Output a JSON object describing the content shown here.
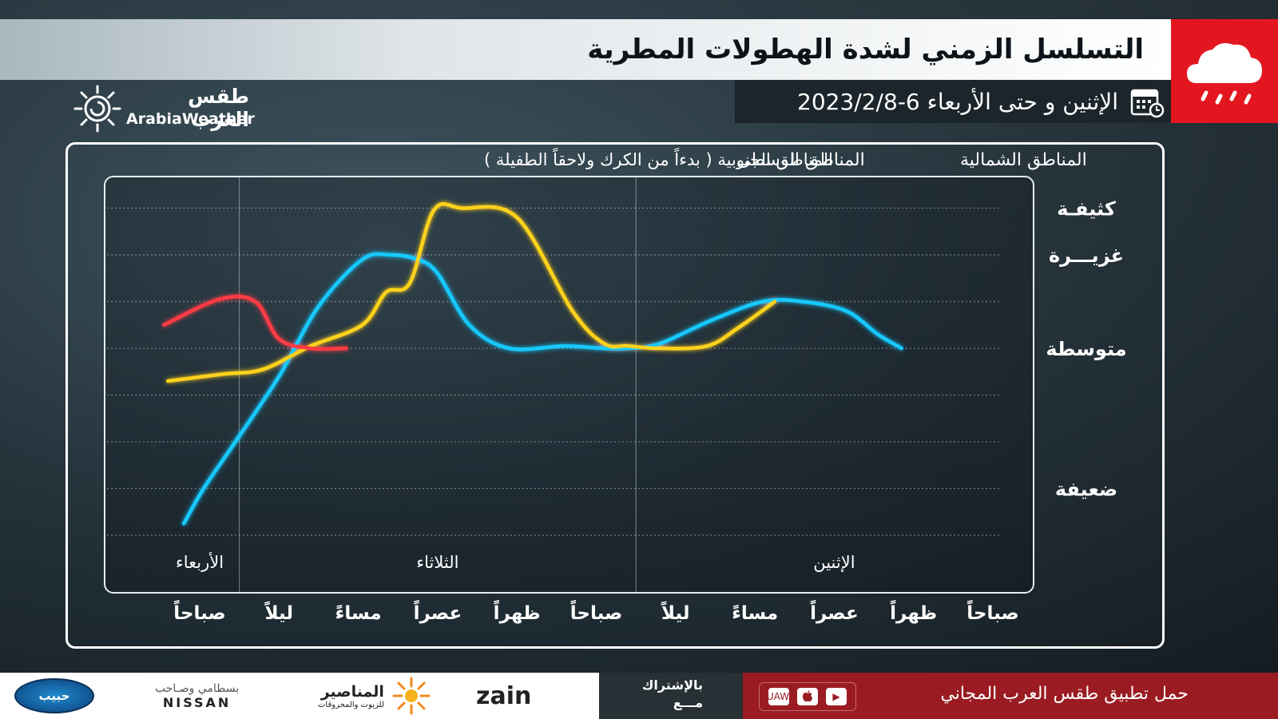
{
  "header": {
    "title": "التسلسل الزمني لشدة الهطولات المطرية",
    "date_range": "الإثنين و حتى الأربعاء  6-2023/2/8"
  },
  "brand": {
    "name_ar": "طقس العرب",
    "name_en": "ArabiaWeather",
    "accent": "#e3161f"
  },
  "legend": {
    "north": "المناطق الشمالية",
    "center": "المناطق الوسطى",
    "south": "المناطق الجنوبية ( بدءاً من الكرك ولاحقاً الطفيلة )"
  },
  "chart_data": {
    "type": "line",
    "x_axis_direction": "right-to-left",
    "categories": [
      "صباحاً",
      "ظهراً",
      "عصراً",
      "مساءً",
      "ليلاً",
      "صباحاً",
      "ظهراً",
      "عصراً",
      "مساءً",
      "ليلاً",
      "صباحاً"
    ],
    "x_tick_labels": [
      "صباحاً",
      "ظهراً",
      "عصراً",
      "مساءً",
      "ليلاً",
      "صباحاً",
      "ظهراً",
      "عصراً",
      "مساءً",
      "ليلاً",
      "صباحاً"
    ],
    "day_labels": [
      {
        "label": "الإثنين",
        "span": [
          0,
          4
        ]
      },
      {
        "label": "الثلاثاء",
        "span": [
          5,
          9
        ]
      },
      {
        "label": "الأربعاء",
        "span": [
          10,
          10
        ]
      }
    ],
    "y_levels": [
      {
        "label": "ضعيفة",
        "value": 1
      },
      {
        "label": "متوسطة",
        "value": 4
      },
      {
        "label": "غزيـــرة",
        "value": 6
      },
      {
        "label": "كثيفـة",
        "value": 7
      }
    ],
    "ylim": [
      0.0,
      7.5
    ],
    "grid": true,
    "legend_position": "top",
    "series": [
      {
        "name": "المناطق الشمالية",
        "color": "#19c9ff",
        "x": [
          1.15,
          1.45,
          1.85,
          2.4,
          2.9,
          3.55,
          4.2,
          4.6,
          4.9,
          5.4,
          6.1,
          6.6,
          7.0,
          7.25,
          7.6,
          7.95,
          8.5,
          9.0,
          9.55,
          9.95,
          10.2
        ],
        "y": [
          4.0,
          4.3,
          4.8,
          5.0,
          5.0,
          4.6,
          4.1,
          4.0,
          4.0,
          4.05,
          4.0,
          4.5,
          5.6,
          5.9,
          6.0,
          5.9,
          4.9,
          3.4,
          2.0,
          1.0,
          0.25
        ]
      },
      {
        "name": "المناطق الوسطى",
        "color": "#ffd21c",
        "x": [
          2.75,
          3.2,
          3.6,
          4.2,
          4.6,
          4.9,
          5.3,
          6.0,
          6.7,
          7.05,
          7.35,
          7.65,
          7.95,
          8.6,
          9.2,
          9.7,
          10.4
        ],
        "y": [
          5.0,
          4.45,
          4.05,
          4.0,
          4.05,
          4.1,
          4.8,
          6.8,
          7.0,
          6.95,
          5.4,
          5.2,
          4.5,
          4.05,
          3.55,
          3.45,
          3.3
        ]
      },
      {
        "name": "المناطق الجنوبية ( بدءاً من الكرك ولاحقاً الطفيلة )",
        "color": "#ff3b45",
        "x": [
          8.15,
          8.6,
          9.0,
          9.3,
          9.75,
          10.45
        ],
        "y": [
          4.0,
          4.0,
          4.2,
          5.0,
          5.05,
          4.5
        ]
      }
    ]
  },
  "footer": {
    "app_cta": "حمل تطبيق طقس العرب المجاني",
    "store_labels": [
      "HUAWEI",
      "",
      "▶"
    ],
    "subscribe_1": "بالإشتراك",
    "subscribe_2": "مـــع",
    "sponsor_zain": "zain",
    "sponsor_manaseer": "المناصير",
    "sponsor_manaseer_sub": "للزيوت والمحروقات",
    "sponsor_nissan_ar": "بسطامي وصـاحب",
    "sponsor_nissan": "NISSAN",
    "sponsor_last": "حبيب"
  }
}
